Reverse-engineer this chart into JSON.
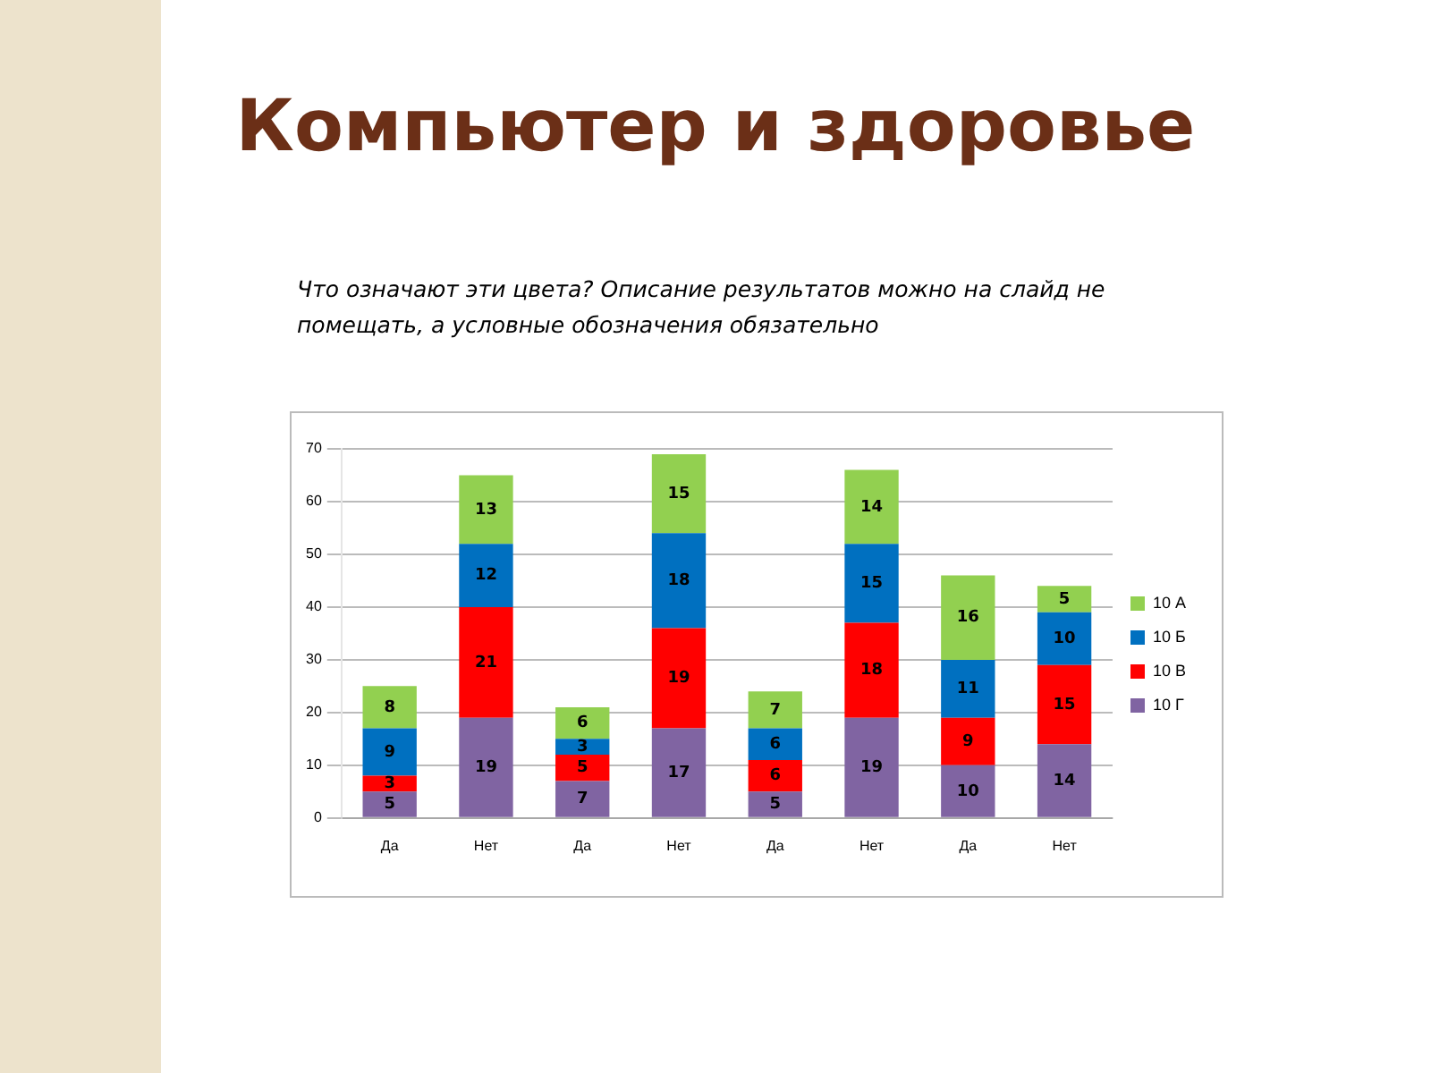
{
  "chart_data": {
    "type": "bar",
    "title": "Компьютер и здоровье",
    "subtitle": "Что означают эти цвета? Описание результатов можно на слайд не помещать, а условные обозначения обязательно",
    "categories": [
      "Да",
      "Нет",
      "Да",
      "Нет",
      "Да",
      "Нет",
      "Да",
      "Нет"
    ],
    "stacked": true,
    "series": [
      {
        "name": "10 Г",
        "color": "#8064a2",
        "values": [
          5,
          19,
          7,
          17,
          5,
          19,
          10,
          14
        ]
      },
      {
        "name": "10 В",
        "color": "#ff0000",
        "values": [
          3,
          21,
          5,
          19,
          6,
          18,
          9,
          15
        ]
      },
      {
        "name": "10 Б",
        "color": "#0070c0",
        "values": [
          9,
          12,
          3,
          18,
          6,
          15,
          11,
          10
        ]
      },
      {
        "name": "10 А",
        "color": "#92d050",
        "values": [
          8,
          13,
          6,
          15,
          7,
          14,
          16,
          5
        ]
      }
    ],
    "ylim": [
      0,
      70
    ],
    "yticks": [
      0,
      10,
      20,
      30,
      40,
      50,
      60,
      70
    ],
    "grid": "y",
    "legend": "right",
    "data_labels": true
  }
}
